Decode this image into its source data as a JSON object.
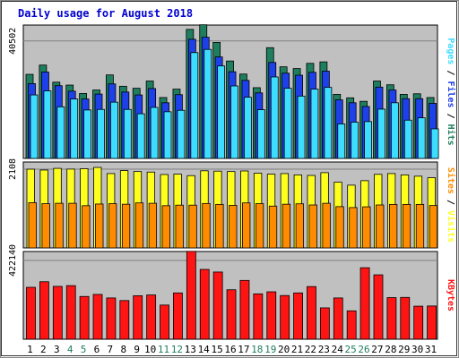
{
  "chart_data": [
    {
      "type": "bar",
      "title": "Daily usage for August 2018",
      "panel": "hits-files-pages",
      "categories": [
        "1",
        "2",
        "3",
        "4",
        "5",
        "6",
        "7",
        "8",
        "9",
        "10",
        "11",
        "12",
        "13",
        "14",
        "15",
        "16",
        "17",
        "18",
        "19",
        "20",
        "21",
        "22",
        "23",
        "24",
        "25",
        "26",
        "27",
        "28",
        "29",
        "30",
        "31"
      ],
      "weekend_days": [
        "4",
        "5",
        "11",
        "12",
        "18",
        "19",
        "25",
        "26"
      ],
      "y_tick_label": "40502",
      "y_tick_value": 40502,
      "ylim": [
        0,
        46000
      ],
      "axis_label_parts": [
        "Pages",
        "Files",
        "Hits"
      ],
      "series": [
        {
          "name": "Hits",
          "color": "#1e7e5e",
          "values": [
            29000,
            32200,
            26300,
            25300,
            22400,
            23600,
            28800,
            24900,
            24200,
            26700,
            21000,
            23900,
            44500,
            46100,
            40000,
            33600,
            29100,
            24400,
            38200,
            31600,
            31000,
            32800,
            33300,
            22100,
            20900,
            19700,
            26700,
            25400,
            22100,
            22300,
            21000
          ]
        },
        {
          "name": "Files",
          "color": "#1e40e8",
          "values": [
            25800,
            29800,
            25100,
            23200,
            20500,
            22200,
            25700,
            22900,
            21900,
            24100,
            19200,
            22000,
            41100,
            41800,
            35000,
            29900,
            26900,
            22600,
            33100,
            29400,
            28700,
            29700,
            30100,
            20200,
            19200,
            17900,
            24600,
            23600,
            20600,
            20600,
            19000
          ]
        },
        {
          "name": "Pages",
          "color": "#3cddff",
          "values": [
            21900,
            23300,
            17800,
            20500,
            16700,
            16900,
            19400,
            16900,
            15400,
            17600,
            16100,
            16600,
            36500,
            37600,
            31900,
            25000,
            21100,
            16800,
            28100,
            24200,
            21500,
            23900,
            24500,
            11900,
            12500,
            12700,
            17000,
            19200,
            13200,
            14000,
            10200
          ]
        }
      ]
    },
    {
      "type": "bar",
      "panel": "visits-sites",
      "categories": [
        "1",
        "2",
        "3",
        "4",
        "5",
        "6",
        "7",
        "8",
        "9",
        "10",
        "11",
        "12",
        "13",
        "14",
        "15",
        "16",
        "17",
        "18",
        "19",
        "20",
        "21",
        "22",
        "23",
        "24",
        "25",
        "26",
        "27",
        "28",
        "29",
        "30",
        "31"
      ],
      "y_tick_label": "2108",
      "y_tick_value": 2108,
      "ylim": [
        0,
        2300
      ],
      "axis_label_parts": [
        "Sites",
        "Visits"
      ],
      "series": [
        {
          "name": "Visits",
          "color": "#ffff1e",
          "values": [
            2108,
            2085,
            2130,
            2110,
            2120,
            2155,
            1990,
            2070,
            2045,
            2030,
            1965,
            1975,
            1935,
            2065,
            2055,
            2045,
            2060,
            2000,
            1975,
            1990,
            1955,
            1940,
            2015,
            1760,
            1680,
            1800,
            1970,
            1990,
            1955,
            1920,
            1880
          ]
        },
        {
          "name": "Sites",
          "color": "#ff8c00",
          "values": [
            1210,
            1185,
            1195,
            1195,
            1130,
            1175,
            1185,
            1170,
            1205,
            1195,
            1130,
            1145,
            1145,
            1190,
            1165,
            1140,
            1205,
            1185,
            1120,
            1170,
            1180,
            1150,
            1195,
            1105,
            1080,
            1100,
            1150,
            1165,
            1165,
            1165,
            1135
          ]
        }
      ]
    },
    {
      "type": "bar",
      "panel": "kbytes",
      "categories": [
        "1",
        "2",
        "3",
        "4",
        "5",
        "6",
        "7",
        "8",
        "9",
        "10",
        "11",
        "12",
        "13",
        "14",
        "15",
        "16",
        "17",
        "18",
        "19",
        "20",
        "21",
        "22",
        "23",
        "24",
        "25",
        "26",
        "27",
        "28",
        "29",
        "30",
        "31"
      ],
      "y_tick_label": "422140",
      "y_tick_value": 422140,
      "ylim": [
        0,
        470000
      ],
      "axis_label_parts": [
        "KBytes"
      ],
      "series": [
        {
          "name": "KBytes",
          "color": "#ff1414",
          "values": [
            278000,
            308000,
            283000,
            287000,
            229000,
            240000,
            221000,
            207000,
            233000,
            237000,
            183000,
            248000,
            471000,
            374000,
            360000,
            265000,
            315000,
            243000,
            254000,
            234000,
            248000,
            282000,
            168000,
            221000,
            152000,
            383000,
            345000,
            223000,
            224000,
            177000,
            178000
          ]
        }
      ]
    }
  ]
}
